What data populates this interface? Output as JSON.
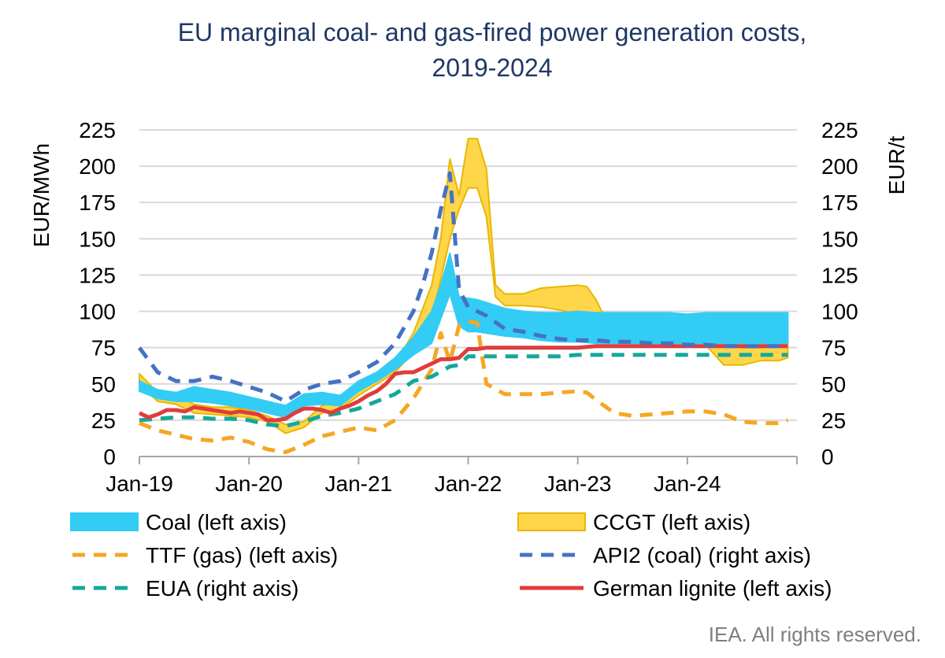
{
  "chart_data": {
    "type": "area+line",
    "title": "EU marginal coal- and gas-fired power generation costs,",
    "title_line2": "2019-2024",
    "y_left_label": "EUR/MWh",
    "y_right_label": "EUR/t",
    "ylim": [
      0,
      225
    ],
    "yticks": [
      0,
      25,
      50,
      75,
      100,
      125,
      150,
      175,
      200,
      225
    ],
    "x_range_months": [
      0,
      72
    ],
    "x_tick_labels": [
      {
        "label": "Jan-19",
        "month": 0
      },
      {
        "label": "Jan-20",
        "month": 12
      },
      {
        "label": "Jan-21",
        "month": 24
      },
      {
        "label": "Jan-22",
        "month": 36
      },
      {
        "label": "Jan-23",
        "month": 48
      },
      {
        "label": "Jan-24",
        "month": 60
      }
    ],
    "bands": [
      {
        "name": "CCGT (left axis)",
        "color": "#ffd54a",
        "edge": "#e8b800",
        "x": [
          0,
          2,
          4,
          6,
          8,
          10,
          12,
          14,
          16,
          18,
          20,
          22,
          24,
          26,
          28,
          30,
          32,
          33,
          34,
          35,
          36,
          37,
          38,
          39,
          40,
          42,
          44,
          46,
          48,
          49,
          50,
          51,
          52,
          54,
          56,
          58,
          60,
          62,
          64,
          66,
          68,
          70,
          71
        ],
        "low": [
          50,
          38,
          36,
          30,
          29,
          28,
          27,
          24,
          16,
          20,
          30,
          33,
          42,
          50,
          58,
          72,
          95,
          122,
          150,
          170,
          185,
          185,
          165,
          110,
          104,
          104,
          103,
          101,
          98,
          97,
          95,
          90,
          83,
          84,
          85,
          86,
          85,
          77,
          63,
          63,
          66,
          66,
          68
        ],
        "high": [
          57,
          44,
          42,
          36,
          34,
          34,
          32,
          28,
          22,
          24,
          35,
          38,
          48,
          55,
          64,
          85,
          118,
          150,
          205,
          180,
          219,
          219,
          198,
          118,
          112,
          112,
          116,
          117,
          118,
          117,
          108,
          95,
          88,
          88,
          90,
          92,
          92,
          86,
          79,
          75,
          75,
          76,
          80
        ]
      },
      {
        "name": "Coal (left axis)",
        "color": "#33ccf5",
        "edge": "#33ccf5",
        "x": [
          0,
          2,
          4,
          6,
          8,
          10,
          12,
          14,
          16,
          18,
          20,
          22,
          24,
          26,
          28,
          30,
          32,
          33,
          34,
          35,
          36,
          37,
          38,
          40,
          42,
          44,
          46,
          48,
          50,
          52,
          54,
          56,
          58,
          60,
          62,
          64,
          66,
          68,
          70,
          71
        ],
        "low": [
          45,
          40,
          38,
          38,
          37,
          35,
          33,
          30,
          27,
          35,
          36,
          35,
          45,
          52,
          60,
          70,
          78,
          95,
          112,
          90,
          86,
          86,
          85,
          83,
          82,
          80,
          79,
          79,
          78,
          78,
          78,
          78,
          78,
          78,
          78,
          78,
          78,
          78,
          78,
          78
        ],
        "high": [
          52,
          46,
          44,
          48,
          46,
          44,
          41,
          38,
          35,
          43,
          44,
          42,
          52,
          58,
          68,
          82,
          100,
          118,
          140,
          110,
          109,
          108,
          106,
          102,
          100,
          99,
          99,
          100,
          99,
          99,
          99,
          99,
          99,
          98,
          99,
          99,
          99,
          99,
          99,
          99
        ]
      }
    ],
    "series": [
      {
        "name": "TTF (gas) (left axis)",
        "axis": "left",
        "style": "dashed",
        "color": "#f5a623",
        "x": [
          0,
          2,
          4,
          6,
          8,
          10,
          12,
          14,
          16,
          18,
          20,
          22,
          24,
          26,
          28,
          30,
          32,
          33,
          34,
          35,
          36,
          37,
          37.5,
          38,
          40,
          42,
          44,
          46,
          48,
          49,
          50,
          52,
          54,
          56,
          58,
          60,
          62,
          64,
          66,
          68,
          70,
          71
        ],
        "values": [
          23,
          18,
          15,
          12,
          11,
          13,
          10,
          5,
          3,
          8,
          14,
          17,
          20,
          18,
          25,
          40,
          60,
          85,
          65,
          90,
          93,
          92,
          70,
          50,
          43,
          43,
          43,
          44,
          45,
          44,
          39,
          30,
          28,
          29,
          30,
          31,
          31,
          29,
          24,
          23,
          23,
          25
        ]
      },
      {
        "name": "API2 (coal) (right axis)",
        "axis": "right",
        "style": "dashed",
        "color": "#4472c4",
        "x": [
          0,
          2,
          4,
          6,
          8,
          10,
          12,
          14,
          16,
          18,
          20,
          22,
          24,
          26,
          28,
          30,
          31,
          32,
          33,
          34,
          35,
          36,
          38,
          40,
          42,
          44,
          46,
          48,
          50,
          52,
          54,
          56,
          58,
          60,
          62,
          64,
          66,
          68,
          70,
          71
        ],
        "values": [
          75,
          58,
          52,
          52,
          55,
          52,
          48,
          44,
          38,
          46,
          50,
          52,
          58,
          65,
          78,
          100,
          118,
          140,
          170,
          195,
          115,
          103,
          97,
          88,
          86,
          83,
          81,
          80,
          80,
          79,
          79,
          78,
          78,
          77,
          77,
          76,
          76,
          76,
          76,
          76
        ]
      },
      {
        "name": "EUA (right axis)",
        "axis": "right",
        "style": "dashed",
        "color": "#14a89a",
        "x": [
          0,
          2,
          4,
          6,
          8,
          10,
          12,
          14,
          16,
          18,
          20,
          22,
          24,
          26,
          28,
          30,
          32,
          34,
          35,
          36,
          38,
          40,
          42,
          44,
          46,
          48,
          50,
          52,
          54,
          56,
          58,
          60,
          62,
          64,
          66,
          68,
          70,
          71
        ],
        "values": [
          25,
          26,
          27,
          27,
          26,
          26,
          25,
          22,
          21,
          24,
          28,
          30,
          33,
          38,
          43,
          52,
          55,
          62,
          63,
          69,
          69,
          69,
          69,
          69,
          69,
          70,
          70,
          70,
          70,
          70,
          70,
          70,
          70,
          70,
          70,
          70,
          70,
          70
        ]
      },
      {
        "name": "German lignite (left axis)",
        "axis": "left",
        "style": "solid",
        "color": "#e03c3c",
        "x": [
          0,
          1,
          2,
          3,
          4,
          5,
          6,
          7,
          8,
          9,
          10,
          11,
          12,
          13,
          14,
          15,
          16,
          17,
          18,
          19,
          20,
          21,
          22,
          23,
          24,
          25,
          26,
          27,
          28,
          29,
          30,
          31,
          32,
          33,
          34,
          35,
          36,
          37,
          38,
          40,
          42,
          44,
          46,
          48,
          50,
          52,
          54,
          56,
          58,
          60,
          62,
          64,
          66,
          68,
          70,
          71
        ],
        "values": [
          30,
          27,
          29,
          32,
          32,
          31,
          34,
          33,
          32,
          31,
          30,
          31,
          30,
          29,
          25,
          25,
          26,
          30,
          33,
          33,
          32,
          30,
          33,
          35,
          38,
          42,
          45,
          50,
          57,
          58,
          58,
          61,
          64,
          67,
          67,
          68,
          74,
          74,
          75,
          75,
          75,
          75,
          75,
          75,
          76,
          76,
          76,
          76,
          76,
          76,
          76,
          76,
          76,
          76,
          76,
          76
        ]
      }
    ],
    "legend": [
      {
        "label": "Coal (left axis)",
        "kind": "band",
        "color": "#33ccf5"
      },
      {
        "label": "CCGT (left axis)",
        "kind": "band",
        "color": "#ffd54a"
      },
      {
        "label": "TTF (gas) (left axis)",
        "kind": "dash",
        "color": "#f5a623"
      },
      {
        "label": "API2 (coal) (right axis)",
        "kind": "dash",
        "color": "#4472c4"
      },
      {
        "label": "EUA (right axis)",
        "kind": "dash",
        "color": "#14a89a"
      },
      {
        "label": "German lignite (left axis)",
        "kind": "solid",
        "color": "#e03c3c"
      }
    ],
    "legend_position": "bottom",
    "grid": true
  },
  "credit": "IEA. All rights reserved."
}
